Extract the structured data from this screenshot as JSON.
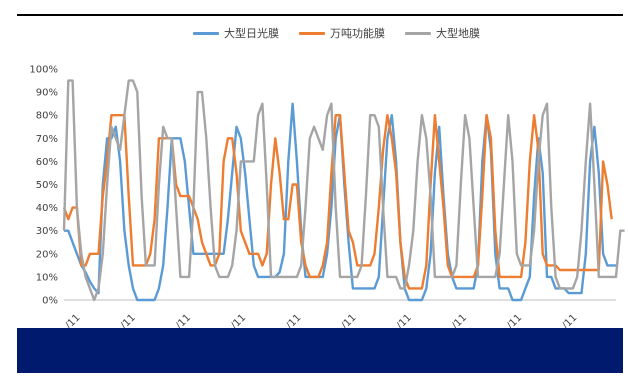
{
  "chart_data": {
    "type": "line",
    "title": "",
    "xlabel": "",
    "ylabel": "",
    "ylim": [
      0,
      100
    ],
    "ytick_labels": [
      "0%",
      "10%",
      "20%",
      "30%",
      "40%",
      "50%",
      "60%",
      "70%",
      "80%",
      "90%",
      "100%"
    ],
    "xtick_labels": [
      "/11",
      "/11",
      "/11",
      "/11",
      "/11",
      "/11",
      "/11",
      "/11",
      "/11",
      "/11"
    ],
    "grid": false,
    "legend_position": "top-center",
    "series": [
      {
        "name": "大型日光膜",
        "color": "#5b9bd5",
        "values": [
          30,
          30,
          25,
          20,
          15,
          12,
          8,
          5,
          3,
          50,
          70,
          70,
          75,
          60,
          30,
          15,
          5,
          0,
          0,
          0,
          0,
          0,
          5,
          15,
          40,
          70,
          70,
          70,
          60,
          40,
          20,
          20,
          20,
          20,
          20,
          20,
          20,
          20,
          35,
          55,
          75,
          70,
          55,
          35,
          15,
          10,
          10,
          10,
          10,
          10,
          12,
          20,
          60,
          85,
          60,
          30,
          10,
          10,
          10,
          10,
          10,
          20,
          40,
          70,
          80,
          50,
          25,
          5,
          5,
          5,
          5,
          5,
          5,
          10,
          40,
          70,
          80,
          60,
          25,
          5,
          0,
          0,
          0,
          0,
          5,
          20,
          55,
          75,
          45,
          20,
          10,
          5,
          5,
          5,
          5,
          5,
          15,
          60,
          80,
          65,
          20,
          5,
          5,
          5,
          0,
          0,
          0,
          5,
          10,
          45,
          70,
          55,
          10,
          10,
          5,
          5,
          5,
          3,
          3,
          3,
          3,
          20,
          60,
          75,
          55,
          20,
          15,
          15,
          15
        ]
      },
      {
        "name": "万吨功能膜",
        "color": "#ed7d31",
        "values": [
          40,
          35,
          40,
          40,
          15,
          15,
          20,
          20,
          20,
          45,
          60,
          80,
          80,
          80,
          80,
          45,
          15,
          15,
          15,
          15,
          20,
          35,
          70,
          70,
          70,
          70,
          50,
          45,
          45,
          45,
          40,
          35,
          25,
          20,
          15,
          15,
          20,
          60,
          70,
          70,
          55,
          30,
          25,
          20,
          20,
          20,
          15,
          20,
          50,
          70,
          55,
          35,
          35,
          50,
          50,
          25,
          15,
          10,
          10,
          10,
          15,
          25,
          55,
          80,
          80,
          55,
          30,
          25,
          15,
          15,
          15,
          15,
          20,
          40,
          65,
          80,
          70,
          55,
          25,
          10,
          5,
          5,
          5,
          5,
          15,
          50,
          80,
          60,
          40,
          15,
          10,
          10,
          10,
          10,
          10,
          10,
          15,
          45,
          80,
          70,
          30,
          10,
          10,
          10,
          10,
          10,
          10,
          25,
          60,
          80,
          65,
          20,
          15,
          15,
          15,
          13,
          13,
          13,
          13,
          13,
          13,
          13,
          13,
          13,
          13,
          60,
          50,
          35
        ]
      },
      {
        "name": "大型地膜",
        "color": "#a5a5a5",
        "values": [
          30,
          95,
          95,
          40,
          20,
          10,
          5,
          0,
          5,
          20,
          50,
          75,
          70,
          65,
          80,
          95,
          95,
          90,
          45,
          15,
          15,
          15,
          50,
          75,
          70,
          70,
          40,
          10,
          10,
          10,
          40,
          90,
          90,
          70,
          40,
          15,
          10,
          10,
          10,
          15,
          30,
          60,
          60,
          60,
          60,
          80,
          85,
          50,
          10,
          10,
          10,
          10,
          10,
          10,
          10,
          15,
          40,
          70,
          75,
          70,
          65,
          80,
          85,
          40,
          10,
          10,
          10,
          10,
          10,
          15,
          45,
          80,
          80,
          75,
          40,
          10,
          10,
          10,
          5,
          5,
          15,
          30,
          60,
          80,
          70,
          45,
          10,
          10,
          10,
          10,
          10,
          15,
          50,
          80,
          70,
          40,
          10,
          10,
          10,
          10,
          10,
          20,
          50,
          80,
          60,
          20,
          15,
          15,
          15,
          30,
          60,
          80,
          85,
          40,
          10,
          5,
          5,
          5,
          5,
          10,
          30,
          60,
          85,
          50,
          10,
          10,
          10,
          10,
          10,
          30,
          30
        ]
      }
    ]
  }
}
